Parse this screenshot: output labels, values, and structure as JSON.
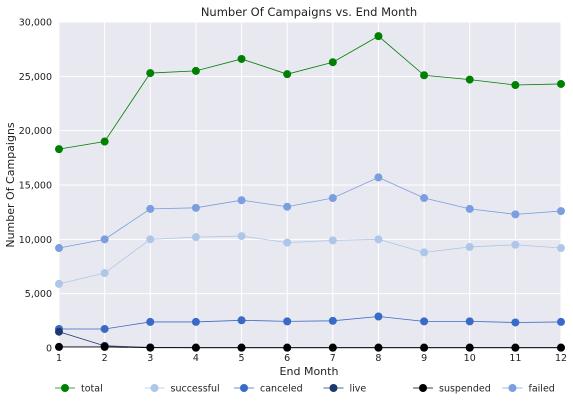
{
  "chart_data": {
    "type": "line",
    "title": "Number Of Campaigns vs. End Month",
    "xlabel": "End Month",
    "ylabel": "Number Of Campaigns",
    "x": [
      1,
      2,
      3,
      4,
      5,
      6,
      7,
      8,
      9,
      10,
      11,
      12
    ],
    "xlim": [
      1,
      12
    ],
    "ylim": [
      0,
      30000
    ],
    "yticks": [
      0,
      5000,
      10000,
      15000,
      20000,
      25000,
      30000
    ],
    "ytick_labels": [
      "0",
      "5,000",
      "10,000",
      "15,000",
      "20,000",
      "25,000",
      "30,000"
    ],
    "grid": true,
    "legend_position": "bottom",
    "background": "#e8e8f0",
    "series": [
      {
        "name": "total",
        "color": "#008000",
        "values": [
          18300,
          19000,
          25300,
          25500,
          26600,
          25200,
          26300,
          28700,
          25100,
          24700,
          24200,
          24300
        ]
      },
      {
        "name": "successful",
        "color": "#aec7e8",
        "values": [
          5900,
          6900,
          10000,
          10200,
          10300,
          9700,
          9900,
          10000,
          8800,
          9300,
          9500,
          9200
        ]
      },
      {
        "name": "canceled",
        "color": "#3a6ac7",
        "values": [
          1750,
          1750,
          2400,
          2400,
          2550,
          2450,
          2500,
          2900,
          2450,
          2450,
          2350,
          2400
        ]
      },
      {
        "name": "live",
        "color": "#1a3a6e",
        "values": [
          1500,
          200,
          50,
          30,
          30,
          30,
          30,
          30,
          30,
          30,
          30,
          30
        ]
      },
      {
        "name": "suspended",
        "color": "#000000",
        "values": [
          100,
          100,
          30,
          30,
          30,
          30,
          30,
          30,
          30,
          30,
          30,
          30
        ]
      },
      {
        "name": "failed",
        "color": "#7a9ee0",
        "values": [
          9200,
          10000,
          12800,
          12900,
          13600,
          13000,
          13800,
          15700,
          13800,
          12800,
          12300,
          12600
        ]
      }
    ]
  }
}
